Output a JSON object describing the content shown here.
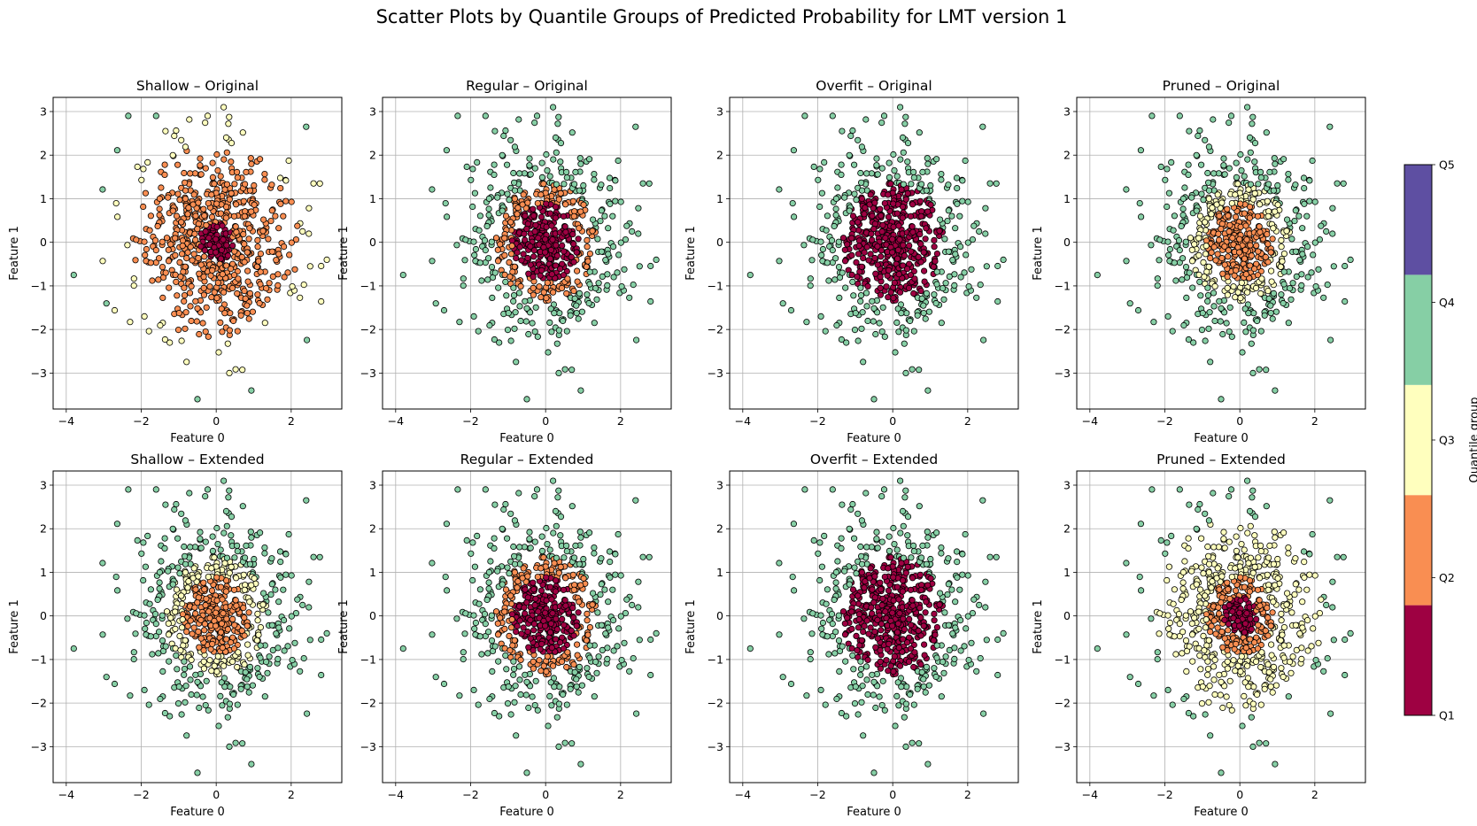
{
  "figure": {
    "suptitle": "Scatter Plots by Quantile Groups of Predicted Probability for LMT version 1"
  },
  "colorbar": {
    "label": "Quantile group",
    "ticks": [
      "Q1",
      "Q2",
      "Q3",
      "Q4",
      "Q5"
    ],
    "colors": [
      "#9e0142",
      "#f98e52",
      "#ffffbe",
      "#86cfa5",
      "#5e4fa2"
    ]
  },
  "chart_data": [
    {
      "type": "scatter",
      "title": "Shallow – Original",
      "model": "Shallow",
      "dataset": "Original",
      "xlabel": "Feature 0",
      "ylabel": "Feature 1",
      "xlim": [
        -4,
        3
      ],
      "ylim": [
        -3.5,
        3
      ],
      "xticks": [
        -4,
        -2,
        0,
        2
      ],
      "yticks": [
        -3,
        -2,
        -1,
        0,
        1,
        2,
        3
      ],
      "grid": true,
      "pattern": {
        "type": "radial",
        "bands": [
          [
            0,
            1,
            1,
            1,
            1,
            2,
            2,
            3,
            3
          ]
        ]
      }
    },
    {
      "type": "scatter",
      "title": "Regular – Original",
      "model": "Regular",
      "dataset": "Original",
      "xlabel": "Feature 0",
      "ylabel": "Feature 1",
      "xlim": [
        -4,
        3
      ],
      "ylim": [
        -3.5,
        3
      ],
      "xticks": [
        -4,
        -2,
        0,
        2
      ],
      "yticks": [
        -3,
        -2,
        -1,
        0,
        1,
        2,
        3
      ],
      "grid": true,
      "pattern": {
        "type": "radial",
        "bands": [
          [
            0,
            0,
            1,
            3,
            3,
            3,
            3,
            3,
            3
          ]
        ]
      }
    },
    {
      "type": "scatter",
      "title": "Overfit – Original",
      "model": "Overfit",
      "dataset": "Original",
      "xlabel": "Feature 0",
      "ylabel": "Feature 1",
      "xlim": [
        -4,
        3
      ],
      "ylim": [
        -3.5,
        3
      ],
      "xticks": [
        -4,
        -2,
        0,
        2
      ],
      "yticks": [
        -3,
        -2,
        -1,
        0,
        1,
        2,
        3
      ],
      "grid": true,
      "pattern": {
        "type": "radial",
        "bands": [
          [
            0,
            0,
            0,
            3,
            3,
            3,
            3,
            3,
            3
          ]
        ]
      }
    },
    {
      "type": "scatter",
      "title": "Pruned – Original",
      "model": "Pruned",
      "dataset": "Original",
      "xlabel": "Feature 0",
      "ylabel": "Feature 1",
      "xlim": [
        -4,
        3
      ],
      "ylim": [
        -3.5,
        3
      ],
      "xticks": [
        -4,
        -2,
        0,
        2
      ],
      "yticks": [
        -3,
        -2,
        -1,
        0,
        1,
        2,
        3
      ],
      "grid": true,
      "pattern": {
        "type": "radial",
        "bands": [
          [
            1,
            1,
            2,
            3,
            3,
            3,
            3,
            3,
            3
          ]
        ]
      }
    },
    {
      "type": "scatter",
      "title": "Shallow – Extended",
      "model": "Shallow",
      "dataset": "Extended",
      "xlabel": "Feature 0",
      "ylabel": "Feature 1",
      "xlim": [
        -4,
        3
      ],
      "ylim": [
        -3.5,
        3
      ],
      "xticks": [
        -4,
        -2,
        0,
        2
      ],
      "yticks": [
        -3,
        -2,
        -1,
        0,
        1,
        2,
        3
      ],
      "grid": true,
      "pattern": {
        "type": "radial",
        "bands": [
          [
            1,
            1,
            2,
            3,
            3,
            3,
            3,
            3,
            3
          ]
        ]
      }
    },
    {
      "type": "scatter",
      "title": "Regular – Extended",
      "model": "Regular",
      "dataset": "Extended",
      "xlabel": "Feature 0",
      "ylabel": "Feature 1",
      "xlim": [
        -4,
        3
      ],
      "ylim": [
        -3.5,
        3
      ],
      "xticks": [
        -4,
        -2,
        0,
        2
      ],
      "yticks": [
        -3,
        -2,
        -1,
        0,
        1,
        2,
        3
      ],
      "grid": true,
      "pattern": {
        "type": "radial",
        "bands": [
          [
            0,
            0,
            1,
            3,
            3,
            3,
            3,
            3,
            3
          ]
        ]
      }
    },
    {
      "type": "scatter",
      "title": "Overfit – Extended",
      "model": "Overfit",
      "dataset": "Extended",
      "xlabel": "Feature 0",
      "ylabel": "Feature 1",
      "xlim": [
        -4,
        3
      ],
      "ylim": [
        -3.5,
        3
      ],
      "xticks": [
        -4,
        -2,
        0,
        2
      ],
      "yticks": [
        -3,
        -2,
        -1,
        0,
        1,
        2,
        3
      ],
      "grid": true,
      "pattern": {
        "type": "radial",
        "bands": [
          [
            0,
            0,
            0,
            3,
            3,
            3,
            3,
            3,
            3
          ]
        ]
      }
    },
    {
      "type": "scatter",
      "title": "Pruned – Extended",
      "model": "Pruned",
      "dataset": "Extended",
      "xlabel": "Feature 0",
      "ylabel": "Feature 1",
      "xlim": [
        -4,
        3
      ],
      "ylim": [
        -3.5,
        3
      ],
      "xticks": [
        -4,
        -2,
        0,
        2
      ],
      "yticks": [
        -3,
        -2,
        -1,
        0,
        1,
        2,
        3
      ],
      "grid": true,
      "pattern": {
        "type": "radial",
        "bands": [
          [
            0,
            1,
            2,
            2,
            2,
            3,
            3,
            3,
            3
          ]
        ]
      }
    }
  ]
}
